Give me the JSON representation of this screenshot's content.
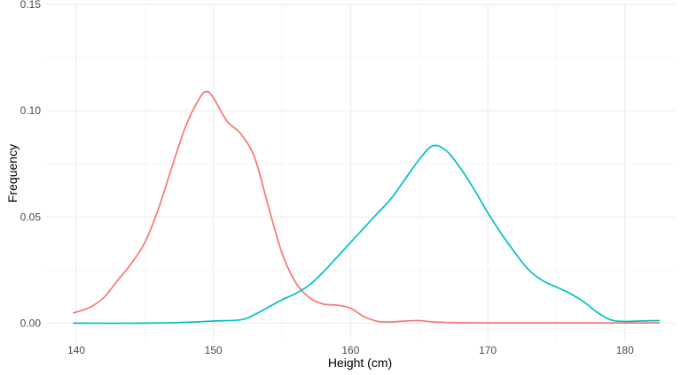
{
  "chart_data": {
    "type": "line",
    "title": "",
    "xlabel": "Height (cm)",
    "ylabel": "Frequency",
    "xlim": [
      137.8,
      183.7
    ],
    "ylim": [
      -0.009,
      0.15
    ],
    "x_ticks": [
      140,
      150,
      160,
      170,
      180
    ],
    "x_tick_labels": [
      "140",
      "150",
      "160",
      "170",
      "180"
    ],
    "y_ticks": [
      0.0,
      0.05,
      0.1,
      0.15
    ],
    "y_tick_labels": [
      "0.00",
      "0.05",
      "0.10",
      "0.15"
    ],
    "grid": true,
    "legend": "none",
    "series": [
      {
        "color": "#F8766D",
        "x": [
          139.8,
          141,
          142,
          143,
          144,
          145,
          146,
          147,
          148,
          149,
          149.5,
          150,
          151,
          152,
          153,
          154,
          155,
          156,
          157,
          158,
          159,
          160,
          161,
          162,
          163,
          164,
          165,
          166,
          168,
          170,
          175,
          180,
          182.5
        ],
        "y": [
          0.0048,
          0.0075,
          0.012,
          0.02,
          0.028,
          0.038,
          0.054,
          0.074,
          0.093,
          0.106,
          0.109,
          0.106,
          0.095,
          0.089,
          0.078,
          0.055,
          0.033,
          0.019,
          0.012,
          0.009,
          0.0085,
          0.007,
          0.003,
          0.0008,
          0.0006,
          0.001,
          0.0012,
          0.0006,
          0.0002,
          0.0001,
          0.0001,
          0.0001,
          0.0001
        ]
      },
      {
        "color": "#00BFC4",
        "x": [
          139.8,
          145,
          148,
          150,
          152,
          153,
          154,
          155,
          156,
          157,
          158,
          159,
          160,
          161,
          162,
          163,
          164,
          165,
          166,
          167,
          168,
          169,
          170,
          171,
          172,
          173,
          174,
          175,
          176,
          177,
          178,
          179,
          180,
          181,
          182.5
        ],
        "y": [
          0.0,
          0.0,
          0.0004,
          0.001,
          0.0016,
          0.004,
          0.0075,
          0.011,
          0.014,
          0.018,
          0.024,
          0.031,
          0.038,
          0.045,
          0.052,
          0.059,
          0.068,
          0.077,
          0.0835,
          0.081,
          0.073,
          0.063,
          0.052,
          0.042,
          0.033,
          0.025,
          0.02,
          0.017,
          0.014,
          0.01,
          0.005,
          0.0015,
          0.0008,
          0.001,
          0.0012
        ]
      }
    ]
  }
}
